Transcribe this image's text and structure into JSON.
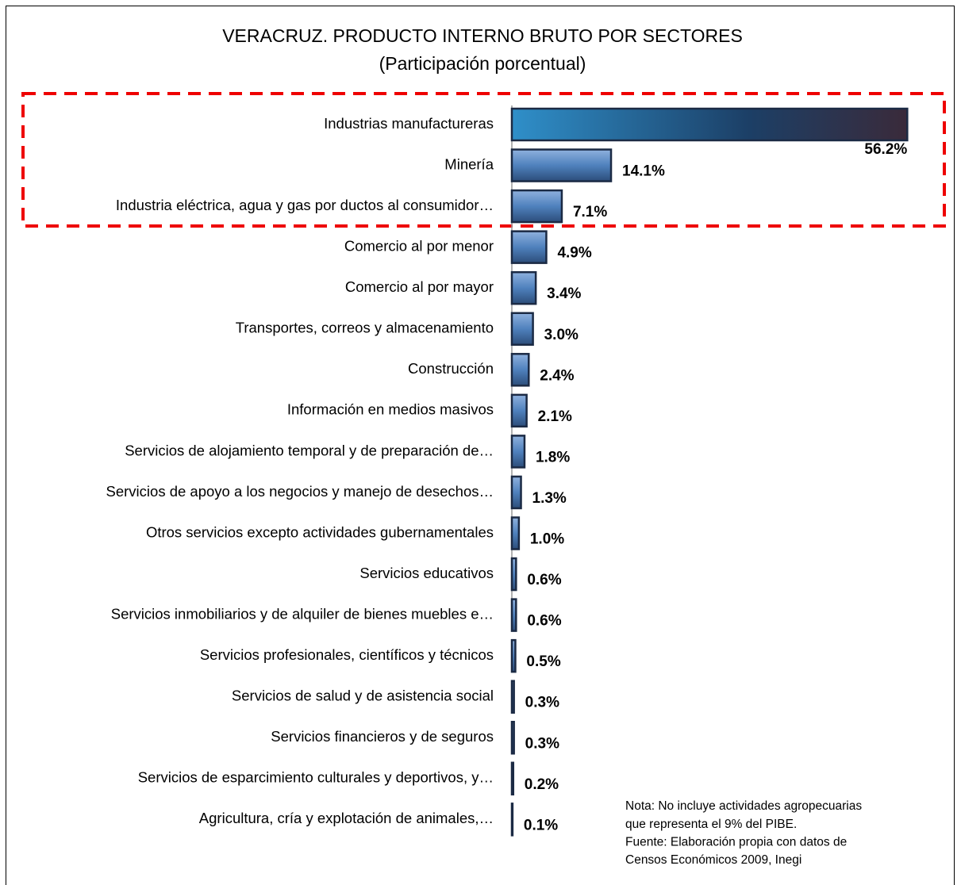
{
  "chart_data": {
    "type": "bar",
    "orientation": "horizontal",
    "title": "VERACRUZ. PRODUCTO INTERNO BRUTO POR SECTORES",
    "subtitle": "(Participación porcentual)",
    "categories": [
      "Industrias manufactureras",
      "Minería",
      "Industria  eléctrica, agua y gas por ductos al consumidor…",
      "Comercio al por menor",
      "Comercio al por mayor",
      "Transportes, correos y almacenamiento",
      "Construcción",
      "Información en medios masivos",
      "Servicios de alojamiento temporal y de preparación de…",
      "Servicios de apoyo a los negocios y manejo de desechos…",
      "Otros servicios excepto actividades gubernamentales",
      "Servicios educativos",
      "Servicios inmobiliarios y de alquiler de bienes muebles e…",
      "Servicios profesionales, científicos y técnicos",
      "Servicios de salud y de asistencia social",
      "Servicios financieros y de seguros",
      "Servicios de esparcimiento culturales y deportivos, y…",
      "Agricultura, cría y explotación de animales,…"
    ],
    "values": [
      56.2,
      14.1,
      7.1,
      4.9,
      3.4,
      3.0,
      2.4,
      2.1,
      1.8,
      1.3,
      1.0,
      0.6,
      0.6,
      0.5,
      0.3,
      0.3,
      0.2,
      0.1
    ],
    "value_labels": [
      "56.2%",
      "14.1%",
      "7.1%",
      "4.9%",
      "3.4%",
      "3.0%",
      "2.4%",
      "2.1%",
      "1.8%",
      "1.3%",
      "1.0%",
      "0.6%",
      "0.6%",
      "0.5%",
      "0.3%",
      "0.3%",
      "0.2%",
      "0.1%"
    ],
    "color": "#4f81bd",
    "xlim": [
      0,
      60
    ],
    "annotations": [
      "Nota: No incluye actividades agropecuarias",
      "que representa el 9% del PIBE.",
      "Fuente: Elaboración propia con datos de",
      "Censos Económicos 2009, Inegi"
    ]
  }
}
